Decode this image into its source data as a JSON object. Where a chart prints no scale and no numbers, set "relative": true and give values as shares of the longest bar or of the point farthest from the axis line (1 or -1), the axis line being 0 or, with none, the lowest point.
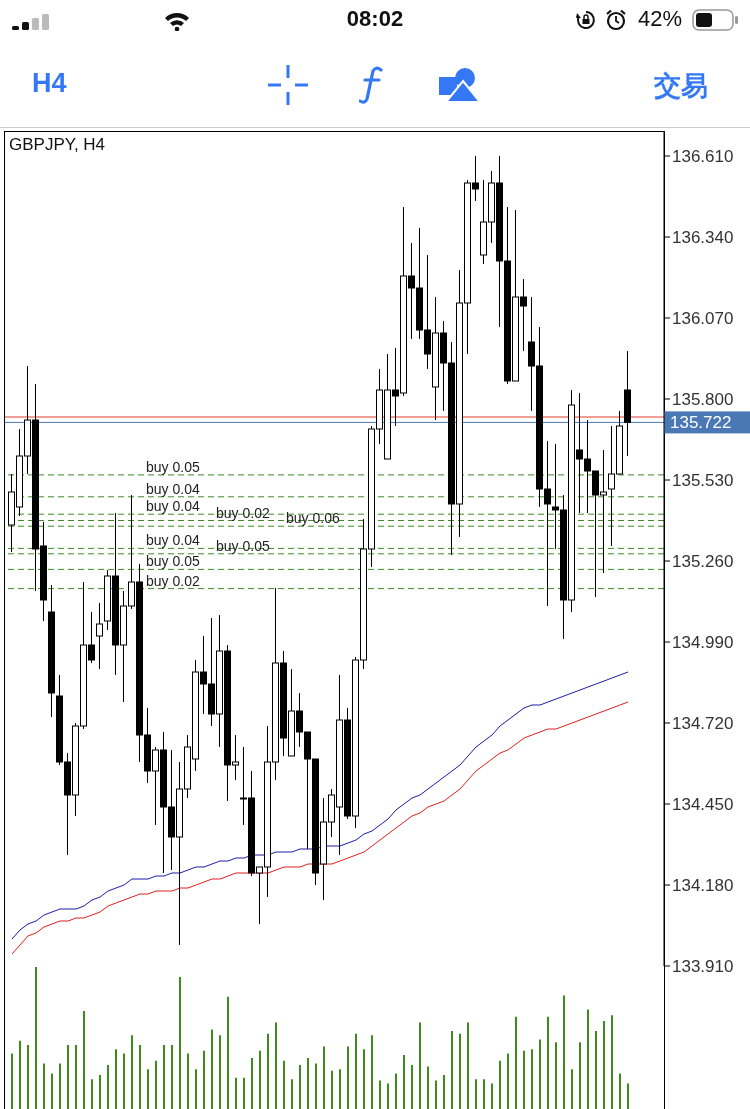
{
  "chart_data": [
    {
      "type": "candlestick",
      "title": "GBPJPY, H4",
      "color": "#000000",
      "categories": [
        null,
        null,
        null,
        null,
        null,
        null,
        null,
        null,
        null,
        null,
        null,
        null,
        null,
        null,
        null,
        null,
        null,
        null,
        null,
        null,
        null,
        null,
        null,
        null,
        null,
        null,
        null,
        null,
        null,
        null,
        null,
        null,
        null,
        null,
        null,
        null,
        null,
        null,
        null,
        null,
        null,
        null,
        null,
        null,
        null,
        null,
        null,
        null,
        null,
        null,
        null,
        null,
        null,
        null,
        null,
        null,
        null,
        null,
        null,
        null,
        null,
        null,
        null,
        null,
        null,
        null,
        null,
        null,
        null,
        null,
        null,
        null,
        null,
        null,
        null,
        null,
        null,
        null
      ],
      "ohlc": [
        [
          135.38,
          135.55,
          135.29,
          135.49
        ],
        [
          135.44,
          135.7,
          135.41,
          135.61
        ],
        [
          135.61,
          135.91,
          135.55,
          135.73
        ],
        [
          135.73,
          135.85,
          135.16,
          135.3
        ],
        [
          135.31,
          135.39,
          135.06,
          135.13
        ],
        [
          135.09,
          135.18,
          134.74,
          134.82
        ],
        [
          134.81,
          134.88,
          134.58,
          134.59
        ],
        [
          134.59,
          134.62,
          134.28,
          134.48
        ],
        [
          134.48,
          134.72,
          134.41,
          134.71
        ],
        [
          134.71,
          135.19,
          134.7,
          134.98
        ],
        [
          134.98,
          135.09,
          134.92,
          134.93
        ],
        [
          135.01,
          135.12,
          134.9,
          135.05
        ],
        [
          135.06,
          135.23,
          135.03,
          135.21
        ],
        [
          135.21,
          135.42,
          134.88,
          134.98
        ],
        [
          134.98,
          135.16,
          134.79,
          135.11
        ],
        [
          135.11,
          135.48,
          135.1,
          135.19
        ],
        [
          135.19,
          135.25,
          134.59,
          134.68
        ],
        [
          134.68,
          134.77,
          134.52,
          134.56
        ],
        [
          134.56,
          134.64,
          134.38,
          134.63
        ],
        [
          134.63,
          134.69,
          134.22,
          134.44
        ],
        [
          134.44,
          134.63,
          134.23,
          134.34
        ],
        [
          134.34,
          134.59,
          133.98,
          134.5
        ],
        [
          134.5,
          134.68,
          134.47,
          134.64
        ],
        [
          134.6,
          134.93,
          134.56,
          134.89
        ],
        [
          134.89,
          135.01,
          134.75,
          134.85
        ],
        [
          134.85,
          135.07,
          134.71,
          134.75
        ],
        [
          134.75,
          135.08,
          134.64,
          134.96
        ],
        [
          134.96,
          134.98,
          134.46,
          134.58
        ],
        [
          134.58,
          134.68,
          134.53,
          134.59
        ],
        [
          134.47,
          134.64,
          134.38,
          134.47
        ],
        [
          134.47,
          134.56,
          134.21,
          134.22
        ],
        [
          134.22,
          134.24,
          134.05,
          134.24
        ],
        [
          134.24,
          134.71,
          134.14,
          134.59
        ],
        [
          134.59,
          135.17,
          134.53,
          134.92
        ],
        [
          134.92,
          134.96,
          134.61,
          134.67
        ],
        [
          134.61,
          134.9,
          134.61,
          134.76
        ],
        [
          134.76,
          134.82,
          134.64,
          134.69
        ],
        [
          134.69,
          134.69,
          134.3,
          134.6
        ],
        [
          134.6,
          134.6,
          134.18,
          134.22
        ],
        [
          134.25,
          134.47,
          134.13,
          134.39
        ],
        [
          134.39,
          134.5,
          134.34,
          134.48
        ],
        [
          134.44,
          134.88,
          134.28,
          134.73
        ],
        [
          134.73,
          134.77,
          134.4,
          134.41
        ],
        [
          134.41,
          134.94,
          134.37,
          134.93
        ],
        [
          134.93,
          135.4,
          134.9,
          135.3
        ],
        [
          135.3,
          135.71,
          135.24,
          135.7
        ],
        [
          135.7,
          135.9,
          135.65,
          135.83
        ],
        [
          135.6,
          135.95,
          135.6,
          135.83
        ],
        [
          135.83,
          135.97,
          135.71,
          135.81
        ],
        [
          135.82,
          136.44,
          135.81,
          136.21
        ],
        [
          136.21,
          136.32,
          136.0,
          136.17
        ],
        [
          136.17,
          136.37,
          136.0,
          136.03
        ],
        [
          136.03,
          136.28,
          135.9,
          135.95
        ],
        [
          135.84,
          136.14,
          135.73,
          136.02
        ],
        [
          136.02,
          136.06,
          135.76,
          135.92
        ],
        [
          135.92,
          135.99,
          135.28,
          135.45
        ],
        [
          135.45,
          136.23,
          135.34,
          136.12
        ],
        [
          136.12,
          136.53,
          135.95,
          136.52
        ],
        [
          136.52,
          136.61,
          136.46,
          136.5
        ],
        [
          136.28,
          136.53,
          136.25,
          136.39
        ],
        [
          136.39,
          136.56,
          136.32,
          136.52
        ],
        [
          136.52,
          136.61,
          136.04,
          136.26
        ],
        [
          136.26,
          136.44,
          135.85,
          135.86
        ],
        [
          135.86,
          136.43,
          135.86,
          136.14
        ],
        [
          136.14,
          136.2,
          135.96,
          136.11
        ],
        [
          135.99,
          136.14,
          135.76,
          135.91
        ],
        [
          135.91,
          136.04,
          135.44,
          135.5
        ],
        [
          135.5,
          135.66,
          135.11,
          135.45
        ],
        [
          135.44,
          135.65,
          135.3,
          135.43
        ],
        [
          135.43,
          135.48,
          135.0,
          135.13
        ],
        [
          135.13,
          135.83,
          135.09,
          135.78
        ],
        [
          135.63,
          135.82,
          135.42,
          135.6
        ],
        [
          135.6,
          135.73,
          135.42,
          135.56
        ],
        [
          135.56,
          135.56,
          135.14,
          135.48
        ],
        [
          135.48,
          135.63,
          135.22,
          135.49
        ],
        [
          135.5,
          135.71,
          135.31,
          135.55
        ],
        [
          135.55,
          135.76,
          135.55,
          135.71
        ],
        [
          135.83,
          135.96,
          135.61,
          135.722
        ]
      ],
      "series": [
        {
          "type": "line",
          "color": "#1c1ca8",
          "values": [
            134.0,
            134.03,
            134.05,
            134.06,
            134.08,
            134.09,
            134.1,
            134.1,
            134.1,
            134.11,
            134.13,
            134.14,
            134.16,
            134.17,
            134.18,
            134.2,
            134.2,
            134.2,
            134.21,
            134.21,
            134.22,
            134.22,
            134.23,
            134.24,
            134.24,
            134.25,
            134.26,
            134.26,
            134.27,
            134.27,
            134.28,
            134.28,
            134.28,
            134.29,
            134.29,
            134.29,
            134.3,
            134.3,
            134.3,
            134.31,
            134.31,
            134.31,
            134.32,
            134.33,
            134.35,
            134.36,
            134.38,
            134.4,
            134.43,
            134.45,
            134.47,
            134.48,
            134.5,
            134.52,
            134.54,
            134.56,
            134.58,
            134.61,
            134.64,
            134.66,
            134.68,
            134.71,
            134.73,
            134.75,
            134.77,
            134.78,
            134.78,
            134.79,
            134.8,
            134.81,
            134.82,
            134.83,
            134.84,
            134.85,
            134.86,
            134.87,
            134.88,
            134.89
          ]
        },
        {
          "type": "line",
          "color": "#e0201c",
          "values": [
            133.95,
            133.98,
            134.01,
            134.02,
            134.04,
            134.05,
            134.06,
            134.06,
            134.07,
            134.07,
            134.08,
            134.09,
            134.11,
            134.12,
            134.13,
            134.14,
            134.15,
            134.15,
            134.16,
            134.16,
            134.16,
            134.17,
            134.17,
            134.18,
            134.19,
            134.2,
            134.2,
            134.21,
            134.22,
            134.22,
            134.22,
            134.22,
            134.22,
            134.23,
            134.24,
            134.24,
            134.24,
            134.25,
            134.25,
            134.25,
            134.25,
            134.26,
            134.27,
            134.28,
            134.29,
            134.31,
            134.33,
            134.35,
            134.37,
            134.39,
            134.41,
            134.42,
            134.44,
            134.45,
            134.46,
            134.48,
            134.5,
            134.53,
            134.56,
            134.58,
            134.6,
            134.62,
            134.63,
            134.65,
            134.67,
            134.68,
            134.69,
            134.7,
            134.7,
            134.71,
            134.72,
            134.73,
            134.74,
            134.75,
            134.76,
            134.77,
            134.78,
            134.79
          ]
        }
      ],
      "ylim": [
        133.91,
        136.69
      ],
      "yticks": [
        {
          "value": 136.61,
          "label": "136.610"
        },
        {
          "value": 136.34,
          "label": "136.340"
        },
        {
          "value": 136.07,
          "label": "136.070"
        },
        {
          "value": 135.8,
          "label": "135.800"
        },
        {
          "value": 135.53,
          "label": "135.530"
        },
        {
          "value": 135.26,
          "label": "135.260"
        },
        {
          "value": 134.99,
          "label": "134.990"
        },
        {
          "value": 134.72,
          "label": "134.720"
        },
        {
          "value": 134.45,
          "label": "134.450"
        },
        {
          "value": 134.18,
          "label": "134.180"
        },
        {
          "value": 133.91,
          "label": "133.910"
        }
      ],
      "tick_labels": "y",
      "ref_lines": [
        {
          "axis": "y",
          "value": 135.74,
          "color": "#e53a2e"
        },
        {
          "axis": "y",
          "value": 135.722,
          "label": "135.722",
          "color": "#4a78b4"
        },
        {
          "axis": "y",
          "value": 135.547,
          "label": "buy 0.05",
          "color": "#3f8a25",
          "line_style": "dashed"
        },
        {
          "axis": "y",
          "value": 135.474,
          "label": "buy 0.04",
          "color": "#3f8a25",
          "line_style": "dashed"
        },
        {
          "axis": "y",
          "value": 135.416,
          "label": "buy 0.04",
          "color": "#3f8a25",
          "line_style": "dashed"
        },
        {
          "axis": "y",
          "value": 135.395,
          "label": "buy 0.02",
          "color": "#3f8a25",
          "line_style": "dashed"
        },
        {
          "axis": "y",
          "value": 135.376,
          "label": "buy 0.06",
          "color": "#3f8a25",
          "line_style": "dashed"
        },
        {
          "axis": "y",
          "value": 135.302,
          "label": "buy 0.04",
          "color": "#3f8a25",
          "line_style": "dashed"
        },
        {
          "axis": "y",
          "value": 135.284,
          "label": "buy 0.05",
          "color": "#3f8a25",
          "line_style": "dashed"
        },
        {
          "axis": "y",
          "value": 135.232,
          "label": "buy 0.05",
          "color": "#3f8a25",
          "line_style": "dashed"
        },
        {
          "axis": "y",
          "value": 135.168,
          "label": "buy 0.02",
          "color": "#3f8a25",
          "line_style": "dashed"
        }
      ],
      "annotations": [
        "H4",
        "交易",
        "08:02",
        "42%"
      ]
    },
    {
      "type": "bar",
      "relative": true,
      "tick_labels": false,
      "color": "#3c8c1e",
      "categories": [
        null,
        null,
        null,
        null,
        null,
        null,
        null,
        null,
        null,
        null,
        null,
        null,
        null,
        null,
        null,
        null,
        null,
        null,
        null,
        null,
        null,
        null,
        null,
        null,
        null,
        null,
        null,
        null,
        null,
        null,
        null,
        null,
        null,
        null,
        null,
        null,
        null,
        null,
        null,
        null,
        null,
        null,
        null,
        null,
        null,
        null,
        null,
        null,
        null,
        null,
        null,
        null,
        null,
        null,
        null,
        null,
        null,
        null,
        null,
        null,
        null,
        null,
        null,
        null,
        null,
        null,
        null,
        null,
        null,
        null,
        null,
        null,
        null,
        null,
        null,
        null,
        null,
        null
      ],
      "values": [
        0.39,
        0.48,
        0.45,
        1.0,
        0.32,
        0.25,
        0.32,
        0.45,
        0.45,
        0.69,
        0.21,
        0.24,
        0.31,
        0.42,
        0.39,
        0.52,
        0.45,
        0.28,
        0.34,
        0.45,
        0.45,
        0.93,
        0.39,
        0.28,
        0.41,
        0.56,
        0.52,
        0.79,
        0.22,
        0.22,
        0.36,
        0.41,
        0.53,
        0.61,
        0.34,
        0.21,
        0.31,
        0.36,
        0.32,
        0.44,
        0.27,
        0.28,
        0.44,
        0.53,
        0.42,
        0.52,
        0.2,
        0.18,
        0.25,
        0.38,
        0.31,
        0.61,
        0.3,
        0.2,
        0.24,
        0.55,
        0.53,
        0.61,
        0.21,
        0.21,
        0.18,
        0.34,
        0.39,
        0.65,
        0.41,
        0.42,
        0.49,
        0.65,
        0.47,
        0.8,
        0.28,
        0.47,
        0.7,
        0.55,
        0.62,
        0.66,
        0.25,
        0.18
      ]
    }
  ]
}
